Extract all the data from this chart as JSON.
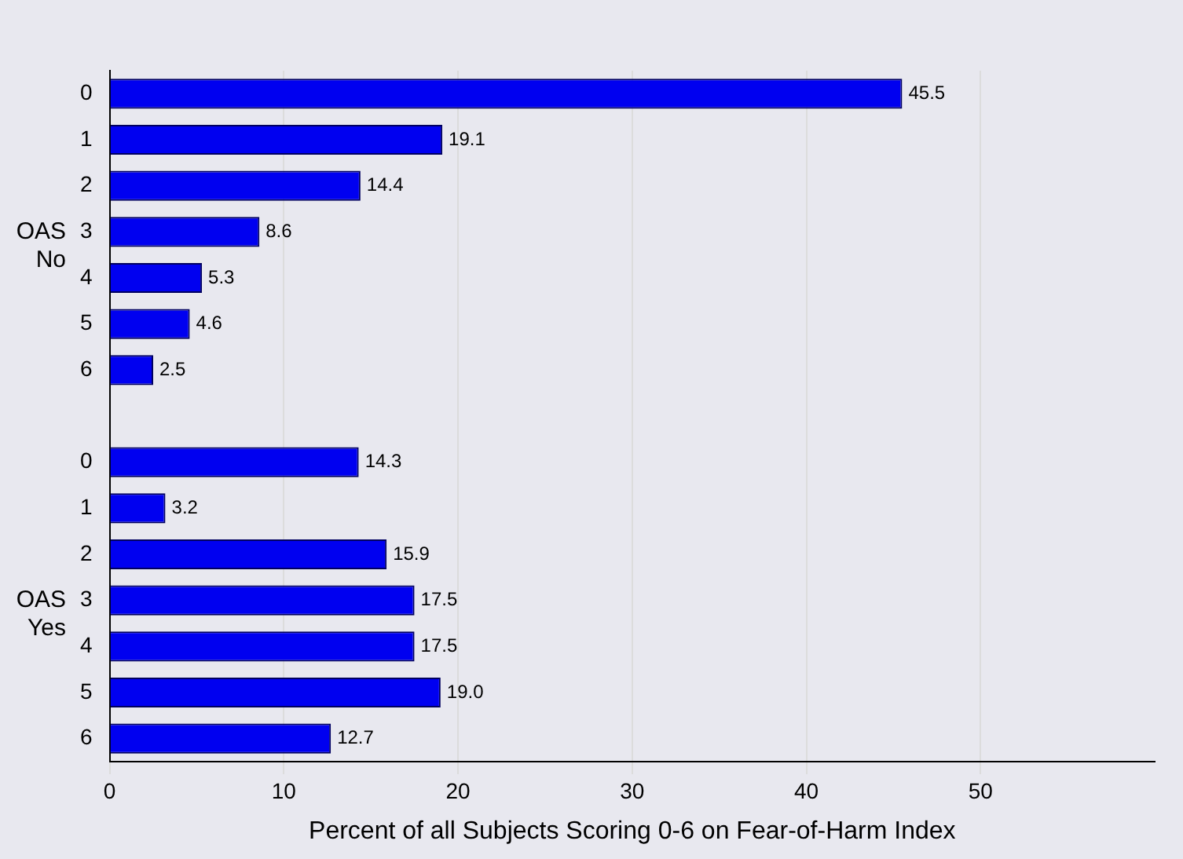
{
  "chart_data": {
    "type": "bar",
    "orientation": "horizontal",
    "xlabel": "Percent of all Subjects Scoring 0-6 on Fear-of-Harm Index",
    "categories": [
      "0",
      "1",
      "2",
      "3",
      "4",
      "5",
      "6",
      null,
      "0",
      "1",
      "2",
      "3",
      "4",
      "5",
      "6"
    ],
    "values": [
      45.5,
      19.1,
      14.4,
      8.6,
      5.3,
      4.6,
      2.5,
      null,
      14.3,
      3.2,
      15.9,
      17.5,
      17.5,
      19.0,
      12.7
    ],
    "value_labels": [
      "45.5",
      "19.1",
      "14.4",
      "8.6",
      "5.3",
      "4.6",
      "2.5",
      null,
      "14.3",
      "3.2",
      "15.9",
      "17.5",
      "17.5",
      "19.0",
      "12.7"
    ],
    "color": "#0000f0",
    "xlim": [
      0,
      60
    ],
    "xticks": [
      0,
      10,
      20,
      30,
      40,
      50
    ],
    "grid": "x",
    "annotations": [
      "OAS\nNo",
      "OAS\nYes"
    ]
  }
}
